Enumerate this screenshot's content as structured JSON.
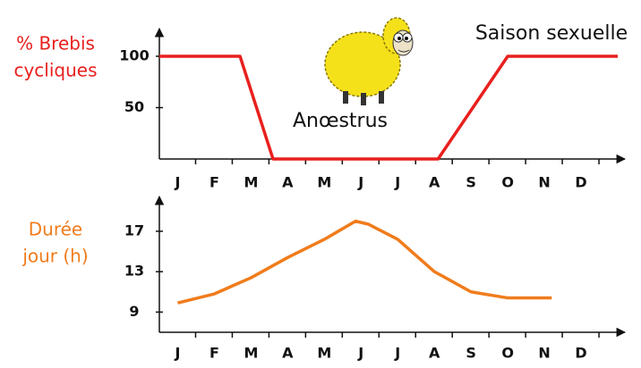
{
  "chart_data": [
    {
      "type": "line",
      "ylabel": [
        "% Brebis",
        "cycliques"
      ],
      "annotations": [
        "Saison sexuelle",
        "Anœstrus"
      ],
      "xlim": [
        -0.5,
        12
      ],
      "ylim": [
        0,
        120
      ],
      "yticks": [
        50,
        100
      ],
      "xticks": [
        {
          "value": 0,
          "label": "J"
        },
        {
          "value": 1,
          "label": "F"
        },
        {
          "value": 2,
          "label": "M"
        },
        {
          "value": 3,
          "label": "A"
        },
        {
          "value": 4,
          "label": "M"
        },
        {
          "value": 5,
          "label": "J"
        },
        {
          "value": 6,
          "label": "J"
        },
        {
          "value": 7,
          "label": "A"
        },
        {
          "value": 8,
          "label": "S"
        },
        {
          "value": 9,
          "label": "O"
        },
        {
          "value": 10,
          "label": "N"
        },
        {
          "value": 11,
          "label": "D"
        }
      ],
      "series": [
        {
          "color": "#e8201e",
          "x": [
            -0.5,
            1.7,
            2.6,
            7.1,
            9,
            12
          ],
          "values": [
            100,
            100,
            0,
            0,
            100,
            100
          ]
        }
      ]
    },
    {
      "type": "line",
      "ylabel": [
        "Durée",
        "jour (h)"
      ],
      "xlim": [
        -0.5,
        12
      ],
      "ylim": [
        7,
        20
      ],
      "yticks": [
        9,
        13,
        17
      ],
      "xticks": [
        {
          "value": 0,
          "label": "J"
        },
        {
          "value": 1,
          "label": "F"
        },
        {
          "value": 2,
          "label": "M"
        },
        {
          "value": 3,
          "label": "A"
        },
        {
          "value": 4,
          "label": "M"
        },
        {
          "value": 5,
          "label": "J"
        },
        {
          "value": 6,
          "label": "J"
        },
        {
          "value": 7,
          "label": "A"
        },
        {
          "value": 8,
          "label": "S"
        },
        {
          "value": 9,
          "label": "O"
        },
        {
          "value": 10,
          "label": "N"
        },
        {
          "value": 11,
          "label": "D"
        }
      ],
      "series": [
        {
          "color": "#f07c1c",
          "x": [
            0,
            1,
            2,
            3,
            4,
            4.85,
            5.2,
            6,
            7,
            8,
            9,
            10.2
          ],
          "values": [
            9.9,
            10.8,
            12.4,
            14.4,
            16.2,
            18,
            17.7,
            16.2,
            13,
            11,
            10.4,
            10.4
          ]
        }
      ]
    }
  ]
}
